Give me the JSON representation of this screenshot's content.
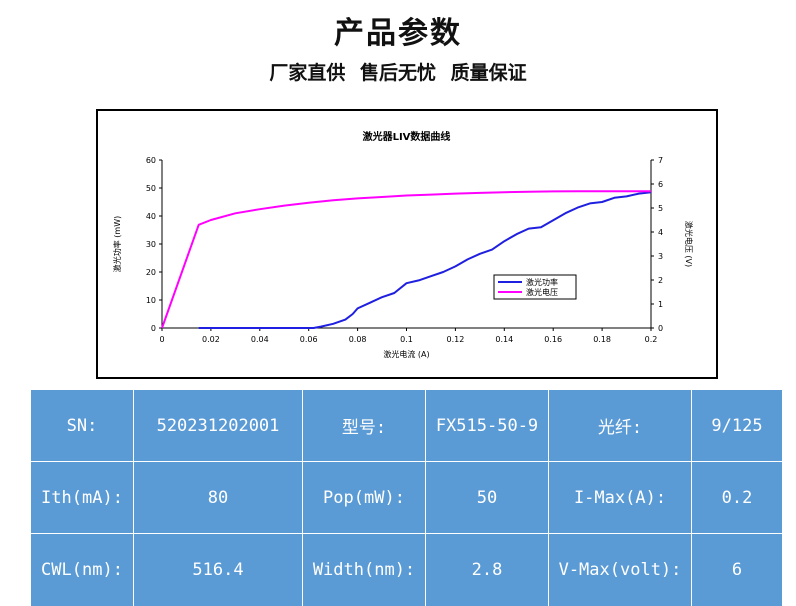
{
  "header": {
    "title": "产品参数",
    "subtitle": "厂家直供 售后无忧 质量保证"
  },
  "chart_data": {
    "type": "line",
    "title": "激光器LIV数据曲线",
    "xlabel": "激光电流 (A)",
    "ylabel_left": "激光功率 (mW)",
    "ylabel_right": "激光电压 (V)",
    "xlim": [
      0,
      0.2
    ],
    "ylim_left": [
      0,
      60
    ],
    "ylim_right": [
      0,
      7
    ],
    "x_ticks": [
      "0",
      "0.02",
      "0.04",
      "0.06",
      "0.08",
      "0.1",
      "0.12",
      "0.14",
      "0.16",
      "0.18",
      "0.2"
    ],
    "y_ticks_left": [
      "0",
      "10",
      "20",
      "30",
      "40",
      "50",
      "60"
    ],
    "y_ticks_right": [
      "0",
      "1",
      "2",
      "3",
      "4",
      "5",
      "6",
      "7"
    ],
    "grid": false,
    "legend_position": "center-right",
    "series": [
      {
        "name": "激光功率",
        "axis": "left",
        "color": "#1f1fe0",
        "points": [
          [
            0.015,
            0
          ],
          [
            0.03,
            0
          ],
          [
            0.05,
            0
          ],
          [
            0.062,
            0
          ],
          [
            0.065,
            0.5
          ],
          [
            0.07,
            1.5
          ],
          [
            0.075,
            3
          ],
          [
            0.078,
            5
          ],
          [
            0.08,
            7
          ],
          [
            0.085,
            9
          ],
          [
            0.09,
            11
          ],
          [
            0.095,
            12.5
          ],
          [
            0.1,
            16
          ],
          [
            0.105,
            17
          ],
          [
            0.11,
            18.5
          ],
          [
            0.115,
            20
          ],
          [
            0.12,
            22
          ],
          [
            0.125,
            24.5
          ],
          [
            0.13,
            26.5
          ],
          [
            0.135,
            28
          ],
          [
            0.14,
            31
          ],
          [
            0.145,
            33.5
          ],
          [
            0.15,
            35.5
          ],
          [
            0.155,
            36
          ],
          [
            0.16,
            38.5
          ],
          [
            0.165,
            41
          ],
          [
            0.17,
            43
          ],
          [
            0.175,
            44.5
          ],
          [
            0.18,
            45
          ],
          [
            0.185,
            46.5
          ],
          [
            0.19,
            47
          ],
          [
            0.195,
            48
          ],
          [
            0.2,
            48.5
          ]
        ]
      },
      {
        "name": "激光电压",
        "axis": "right",
        "color": "#ff00ff",
        "points": [
          [
            0,
            0
          ],
          [
            0.015,
            4.3
          ],
          [
            0.02,
            4.5
          ],
          [
            0.03,
            4.78
          ],
          [
            0.04,
            4.95
          ],
          [
            0.05,
            5.1
          ],
          [
            0.06,
            5.22
          ],
          [
            0.07,
            5.32
          ],
          [
            0.08,
            5.4
          ],
          [
            0.09,
            5.46
          ],
          [
            0.1,
            5.52
          ],
          [
            0.11,
            5.56
          ],
          [
            0.12,
            5.6
          ],
          [
            0.13,
            5.63
          ],
          [
            0.14,
            5.66
          ],
          [
            0.15,
            5.68
          ],
          [
            0.16,
            5.69
          ],
          [
            0.17,
            5.7
          ],
          [
            0.18,
            5.7
          ],
          [
            0.19,
            5.7
          ],
          [
            0.2,
            5.7
          ]
        ]
      }
    ]
  },
  "specs": {
    "rows": [
      [
        "SN:",
        "520231202001",
        "型号:",
        "FX515-50-9",
        "光纤:",
        "9/125"
      ],
      [
        "Ith(mA):",
        "80",
        "Pop(mW):",
        "50",
        "I-Max(A):",
        "0.2"
      ],
      [
        "CWL(nm):",
        "516.4",
        "Width(nm):",
        "2.8",
        "V-Max(volt):",
        "6"
      ]
    ]
  }
}
